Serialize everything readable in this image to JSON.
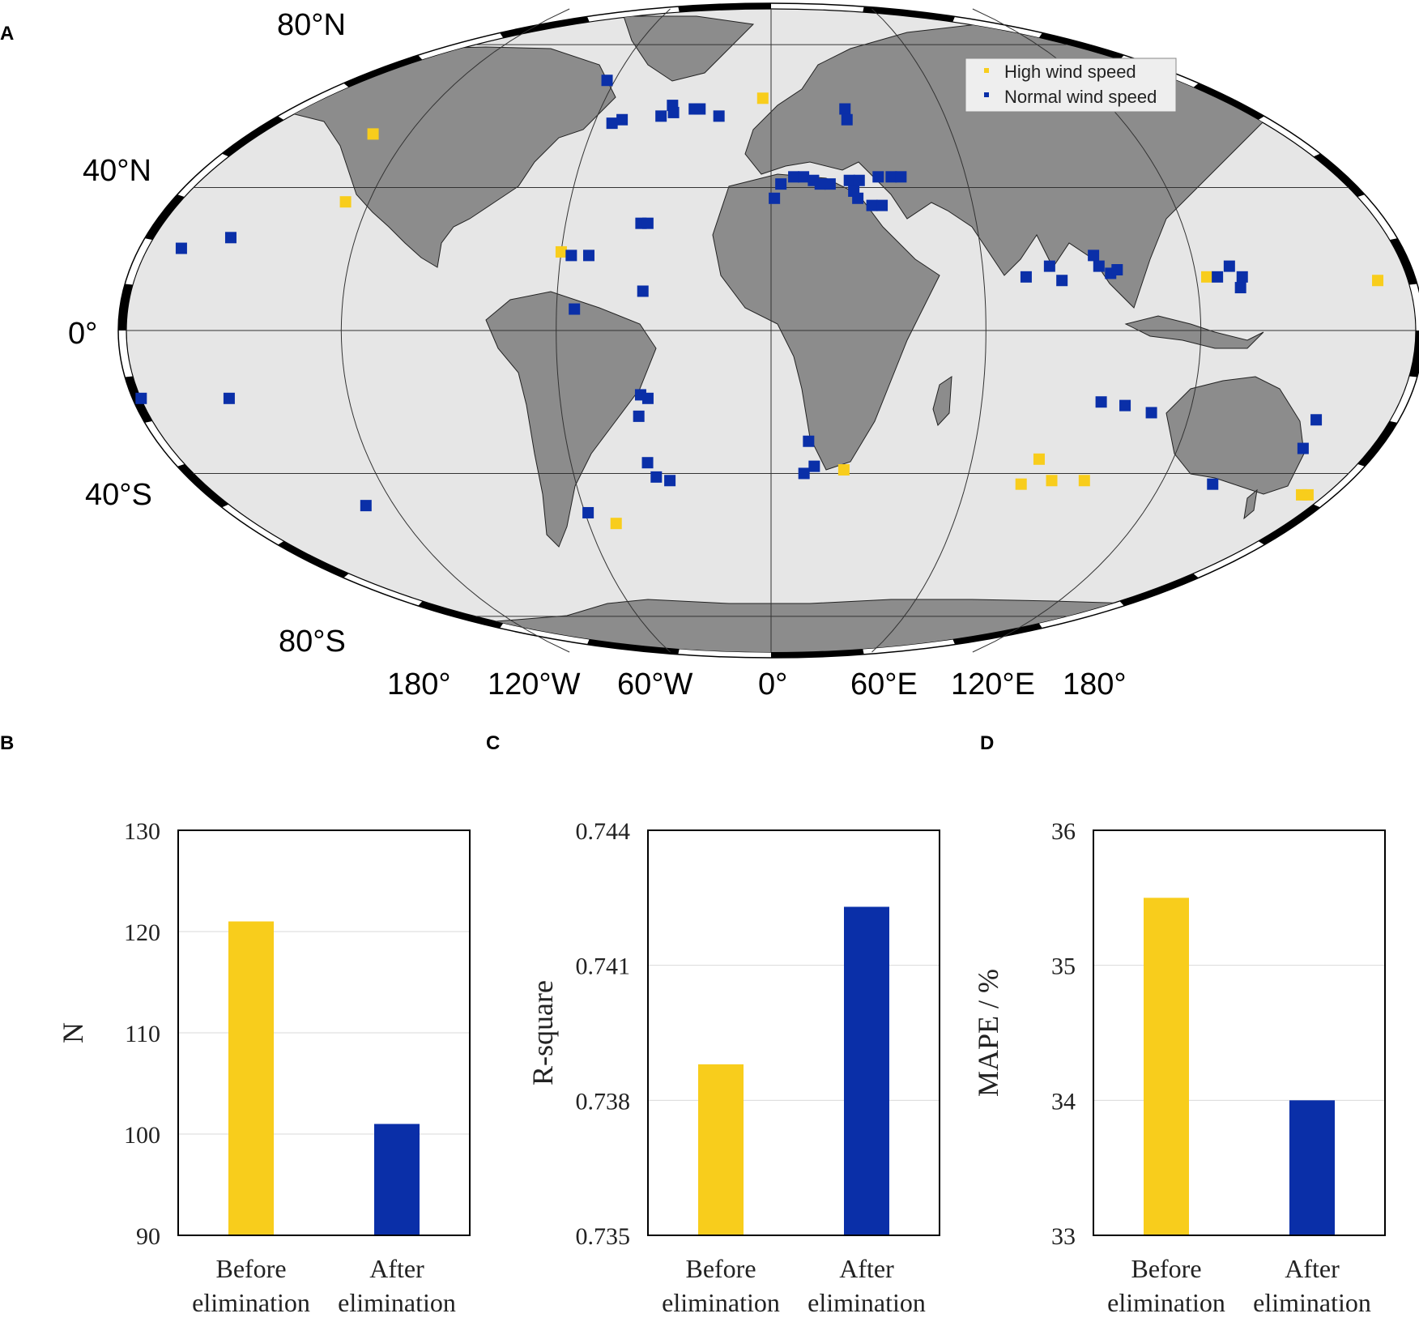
{
  "panels": {
    "a": "A",
    "b": "B",
    "c": "C",
    "d": "D"
  },
  "colors": {
    "high": "#f8cd1c",
    "normal": "#0a2fa8",
    "land": "#8c8c8c",
    "ocean": "#e6e6e6"
  },
  "map": {
    "lat_labels": [
      "80°N",
      "40°N",
      "0°",
      "40°S",
      "80°S"
    ],
    "lon_labels": [
      "180°",
      "120°W",
      "60°W",
      "0°",
      "60°E",
      "120°E",
      "180°"
    ],
    "legend": {
      "high": "High wind speed",
      "normal": "Normal wind speed"
    }
  },
  "chart_data": [
    {
      "type": "bar",
      "categories": [
        "Before elimination",
        "After elimination"
      ],
      "values": [
        121,
        101
      ],
      "ylabel": "N",
      "ylim": [
        90,
        130
      ],
      "yticks": [
        "90",
        "100",
        "110",
        "120",
        "130"
      ],
      "colors": [
        "#f8cd1c",
        "#0a2fa8"
      ],
      "grid": true
    },
    {
      "type": "bar",
      "categories": [
        "Before elimination",
        "After elimination"
      ],
      "values": [
        0.7388,
        0.7423
      ],
      "ylabel": "R-square",
      "ylim": [
        0.735,
        0.744
      ],
      "yticks": [
        "0.735",
        "0.738",
        "0.741",
        "0.744"
      ],
      "colors": [
        "#f8cd1c",
        "#0a2fa8"
      ],
      "grid": true
    },
    {
      "type": "bar",
      "categories": [
        "Before elimination",
        "After elimination"
      ],
      "values": [
        35.5,
        34.0
      ],
      "ylabel": "MAPE / %",
      "ylim": [
        33,
        36
      ],
      "yticks": [
        "33",
        "34",
        "35",
        "36"
      ],
      "colors": [
        "#f8cd1c",
        "#0a2fa8"
      ],
      "grid": true
    },
    {
      "type": "scatter",
      "legend": [
        "High wind speed",
        "Normal wind speed"
      ],
      "high": [
        {
          "lon": -3,
          "lat": 65
        },
        {
          "lon": -132,
          "lat": 55
        },
        {
          "lon": -127,
          "lat": 36
        },
        {
          "lon": -60,
          "lat": 22
        },
        {
          "lon": 123,
          "lat": 15
        },
        {
          "lon": 171,
          "lat": 14
        },
        {
          "lon": 80,
          "lat": -36
        },
        {
          "lon": 77,
          "lat": -43
        },
        {
          "lon": 86,
          "lat": -42
        },
        {
          "lon": 96,
          "lat": -42
        },
        {
          "lon": 22,
          "lat": -39
        },
        {
          "lon": -51,
          "lat": -54
        },
        {
          "lon": 166,
          "lat": -46
        },
        {
          "lon": 168,
          "lat": -46
        }
      ],
      "normal": [
        {
          "lon": -63,
          "lat": 70
        },
        {
          "lon": -54,
          "lat": 58
        },
        {
          "lon": -51,
          "lat": 59
        },
        {
          "lon": -38,
          "lat": 60
        },
        {
          "lon": -35,
          "lat": 63
        },
        {
          "lon": -34,
          "lat": 61
        },
        {
          "lon": -27,
          "lat": 62
        },
        {
          "lon": -25,
          "lat": 62
        },
        {
          "lon": -18,
          "lat": 60
        },
        {
          "lon": 26,
          "lat": 62
        },
        {
          "lon": 26,
          "lat": 59
        },
        {
          "lon": 3,
          "lat": 41
        },
        {
          "lon": 7,
          "lat": 43
        },
        {
          "lon": 10,
          "lat": 43
        },
        {
          "lon": 13,
          "lat": 42
        },
        {
          "lon": 15,
          "lat": 41
        },
        {
          "lon": 18,
          "lat": 41
        },
        {
          "lon": 24,
          "lat": 42
        },
        {
          "lon": 27,
          "lat": 42
        },
        {
          "lon": 33,
          "lat": 43
        },
        {
          "lon": 37,
          "lat": 43
        },
        {
          "lon": 40,
          "lat": 43
        },
        {
          "lon": 1,
          "lat": 37
        },
        {
          "lon": 25,
          "lat": 39
        },
        {
          "lon": 26,
          "lat": 37
        },
        {
          "lon": 30,
          "lat": 35
        },
        {
          "lon": 33,
          "lat": 35
        },
        {
          "lon": -38,
          "lat": 30
        },
        {
          "lon": -36,
          "lat": 30
        },
        {
          "lon": -57,
          "lat": 21
        },
        {
          "lon": -52,
          "lat": 21
        },
        {
          "lon": -36,
          "lat": 11
        },
        {
          "lon": -55,
          "lat": 6
        },
        {
          "lon": -169,
          "lat": 23
        },
        {
          "lon": -156,
          "lat": 26
        },
        {
          "lon": -179,
          "lat": -19
        },
        {
          "lon": -154,
          "lat": -19
        },
        {
          "lon": 72,
          "lat": 15
        },
        {
          "lon": 79,
          "lat": 18
        },
        {
          "lon": 82,
          "lat": 14
        },
        {
          "lon": 92,
          "lat": 21
        },
        {
          "lon": 93,
          "lat": 18
        },
        {
          "lon": 96,
          "lat": 16
        },
        {
          "lon": 98,
          "lat": 17
        },
        {
          "lon": 126,
          "lat": 15
        },
        {
          "lon": 130,
          "lat": 18
        },
        {
          "lon": 133,
          "lat": 15
        },
        {
          "lon": 132,
          "lat": 12
        },
        {
          "lon": -37,
          "lat": -18
        },
        {
          "lon": -35,
          "lat": -19
        },
        {
          "lon": -38,
          "lat": -24
        },
        {
          "lon": -37,
          "lat": -37
        },
        {
          "lon": -35,
          "lat": -41
        },
        {
          "lon": -31,
          "lat": -42
        },
        {
          "lon": 11,
          "lat": -31
        },
        {
          "lon": 13,
          "lat": -38
        },
        {
          "lon": 10,
          "lat": -40
        },
        {
          "lon": 94,
          "lat": -20
        },
        {
          "lon": 101,
          "lat": -21
        },
        {
          "lon": 109,
          "lat": -23
        },
        {
          "lon": 157,
          "lat": -25
        },
        {
          "lon": 157,
          "lat": -33
        },
        {
          "lon": 136,
          "lat": -43
        },
        {
          "lon": -129,
          "lat": -49
        },
        {
          "lon": -59,
          "lat": -51
        }
      ]
    }
  ]
}
